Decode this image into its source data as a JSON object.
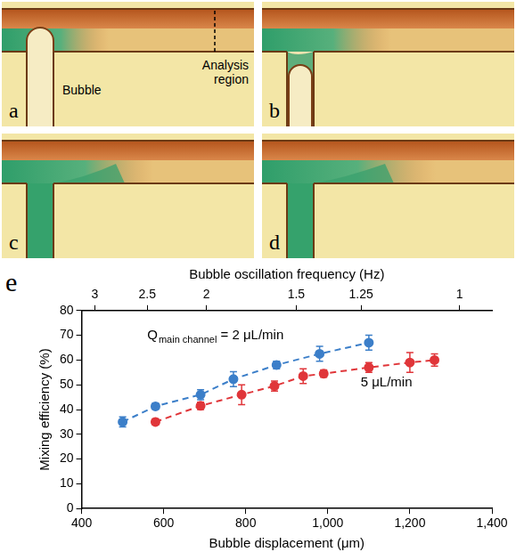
{
  "panels": [
    {
      "letter": "a",
      "labels": {
        "bubble": "Bubble",
        "analysis": "Analysis region"
      }
    },
    {
      "letter": "b"
    },
    {
      "letter": "c"
    },
    {
      "letter": "d"
    }
  ],
  "chart_data": {
    "type": "line",
    "panel_letter": "e",
    "x_title": "Bubble displacement (μm)",
    "y_title": "Mixing efficiency (%)",
    "x2_title": "Bubble oscillation frequency (Hz)",
    "xlim": [
      400,
      1400
    ],
    "xticks": [
      400,
      600,
      800,
      1000,
      1200,
      1400
    ],
    "ylim": [
      0,
      80
    ],
    "yticks": [
      0,
      10,
      20,
      30,
      40,
      50,
      60,
      70,
      80
    ],
    "x2ticks": [
      {
        "value": 432,
        "label": "3"
      },
      {
        "value": 560,
        "label": "2.5"
      },
      {
        "value": 704,
        "label": "2"
      },
      {
        "value": 923,
        "label": "1.5"
      },
      {
        "value": 1081,
        "label": "1.25"
      },
      {
        "value": 1321,
        "label": "1"
      }
    ],
    "grid": false,
    "marker": "circle",
    "line_style": "dashed",
    "series": [
      {
        "name": "2 μL/min",
        "label_prefix": {
          "text": "Q",
          "subscript": "main channel",
          "joiner": " = "
        },
        "color": "#3c7fc9",
        "x": [
          500,
          580,
          690,
          770,
          875,
          980,
          1100
        ],
        "values": [
          35,
          41.3,
          46,
          52.3,
          58,
          62.5,
          67
        ],
        "errors": [
          2,
          1.2,
          2,
          3,
          1.5,
          3,
          3
        ]
      },
      {
        "name": "5 μL/min",
        "color": "#e0363a",
        "x": [
          580,
          690,
          790,
          870,
          940,
          990,
          1100,
          1200,
          1260
        ],
        "values": [
          35,
          41.5,
          46,
          49.5,
          53.5,
          54.5,
          57,
          59,
          60
        ],
        "errors": [
          1.2,
          1.5,
          4,
          2,
          3,
          1.5,
          2,
          4,
          2.5
        ]
      }
    ]
  }
}
